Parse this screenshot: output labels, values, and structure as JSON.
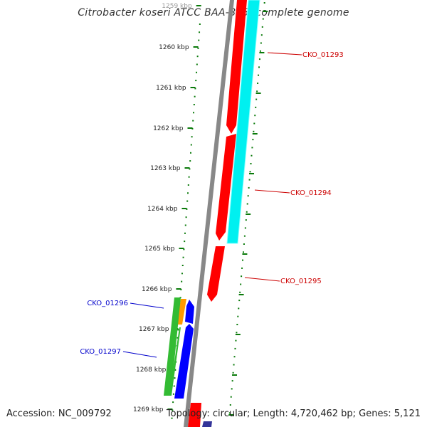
{
  "title": "Citrobacter koseri ATCC BAA-895, complete genome",
  "footer": {
    "accession": "Accession: NC_009792",
    "stats": "Topology: circular; Length: 4,720,462 bp; Genes: 5,121"
  },
  "colors": {
    "backbone": "#888888",
    "tick": "#0a7a0a",
    "forward_gene": "#ff0000",
    "reverse_gene": "#00f0f0",
    "blue_gene": "#0000ff",
    "green_gene": "#33bb33",
    "orange_gene": "#ff9900",
    "label_red": "#cc0000",
    "label_blue": "#0000cc"
  },
  "scale_labels": [
    {
      "kbp": 1259,
      "text": "1259 kbp"
    },
    {
      "kbp": 1260,
      "text": "1260 kbp"
    },
    {
      "kbp": 1261,
      "text": "1261 kbp"
    },
    {
      "kbp": 1262,
      "text": "1262 kbp"
    },
    {
      "kbp": 1263,
      "text": "1263 kbp"
    },
    {
      "kbp": 1264,
      "text": "1264 kbp"
    },
    {
      "kbp": 1265,
      "text": "1265 kbp"
    },
    {
      "kbp": 1266,
      "text": "1266 kbp"
    },
    {
      "kbp": 1267,
      "text": "1267 kbp"
    },
    {
      "kbp": 1268,
      "text": "1268 kbp"
    },
    {
      "kbp": 1269,
      "text": "1269 kbp"
    }
  ],
  "gene_labels": [
    {
      "text": "CKO_01293",
      "side": "right",
      "color": "label_red"
    },
    {
      "text": "CKO_01294",
      "side": "right",
      "color": "label_red"
    },
    {
      "text": "CKO_01295",
      "side": "right",
      "color": "label_red"
    },
    {
      "text": "CKO_01296",
      "side": "left",
      "color": "label_blue"
    },
    {
      "text": "CKO_01297",
      "side": "left",
      "color": "label_blue"
    }
  ]
}
